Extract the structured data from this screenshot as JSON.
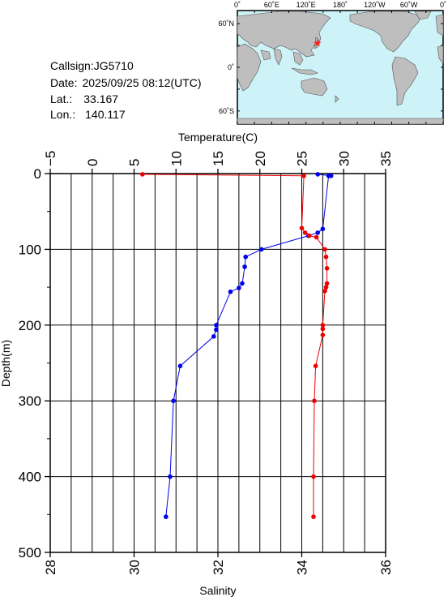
{
  "station": {
    "callsign_label": "Callsign:",
    "callsign": "JG5710",
    "date_label": "Date:",
    "date": "2025/09/25 08:12(UTC)",
    "lat_label": "Lat.:",
    "lat": "33.167",
    "lon_label": "Lon.:",
    "lon": "140.117"
  },
  "map": {
    "top_ticks": [
      "0˚",
      "60˚E",
      "120˚E",
      "180˚",
      "120˚W",
      "60˚W",
      "0˚"
    ],
    "lat_ticks": [
      "60˚N",
      "0˚",
      "60˚S"
    ],
    "marker": {
      "lon": 140.117,
      "lat": 33.167
    },
    "ocean_color": "#cdf3f8",
    "land_color": "#bebebe",
    "marker_color": "#ff2020"
  },
  "chart_data": {
    "type": "line",
    "title": "",
    "ylabel": "Depth(m)",
    "ylim": [
      0,
      500
    ],
    "yticks": [
      "0",
      "100",
      "200",
      "300",
      "400",
      "500"
    ],
    "top_axis": {
      "label": "Temperature(C)",
      "range": [
        -5,
        35
      ],
      "ticks": [
        "−5",
        "0",
        "5",
        "10",
        "15",
        "20",
        "25",
        "30",
        "35"
      ]
    },
    "bottom_axis": {
      "label": "Salinity",
      "range": [
        28,
        36
      ],
      "ticks": [
        "28",
        "30",
        "32",
        "34",
        "36"
      ]
    },
    "grid": true,
    "series": [
      {
        "axis": "temperature",
        "color": "#0000ee",
        "points": [
          {
            "x": 26.9,
            "depth": 1
          },
          {
            "x": 28.5,
            "depth": 3
          },
          {
            "x": 28.2,
            "depth": 3
          },
          {
            "x": 27.5,
            "depth": 73
          },
          {
            "x": 26.9,
            "depth": 78
          },
          {
            "x": 25.8,
            "depth": 82
          },
          {
            "x": 20.2,
            "depth": 100
          },
          {
            "x": 18.3,
            "depth": 110
          },
          {
            "x": 18.2,
            "depth": 123
          },
          {
            "x": 17.9,
            "depth": 145
          },
          {
            "x": 17.5,
            "depth": 151
          },
          {
            "x": 16.5,
            "depth": 156
          },
          {
            "x": 14.8,
            "depth": 200
          },
          {
            "x": 14.8,
            "depth": 206
          },
          {
            "x": 14.5,
            "depth": 215
          },
          {
            "x": 10.5,
            "depth": 254
          },
          {
            "x": 9.7,
            "depth": 300
          },
          {
            "x": 9.3,
            "depth": 400
          },
          {
            "x": 8.8,
            "depth": 453
          }
        ]
      },
      {
        "axis": "salinity",
        "color": "#ee0000",
        "points": [
          {
            "x": 30.2,
            "depth": 1
          },
          {
            "x": 34.05,
            "depth": 3
          },
          {
            "x": 34.0,
            "depth": 72
          },
          {
            "x": 34.08,
            "depth": 78
          },
          {
            "x": 34.18,
            "depth": 82
          },
          {
            "x": 34.35,
            "depth": 84
          },
          {
            "x": 34.55,
            "depth": 100
          },
          {
            "x": 34.58,
            "depth": 110
          },
          {
            "x": 34.6,
            "depth": 125
          },
          {
            "x": 34.6,
            "depth": 145
          },
          {
            "x": 34.58,
            "depth": 150
          },
          {
            "x": 34.55,
            "depth": 155
          },
          {
            "x": 34.5,
            "depth": 200
          },
          {
            "x": 34.5,
            "depth": 205
          },
          {
            "x": 34.5,
            "depth": 213
          },
          {
            "x": 34.33,
            "depth": 254
          },
          {
            "x": 34.3,
            "depth": 300
          },
          {
            "x": 34.28,
            "depth": 400
          },
          {
            "x": 34.28,
            "depth": 453
          }
        ]
      }
    ]
  }
}
